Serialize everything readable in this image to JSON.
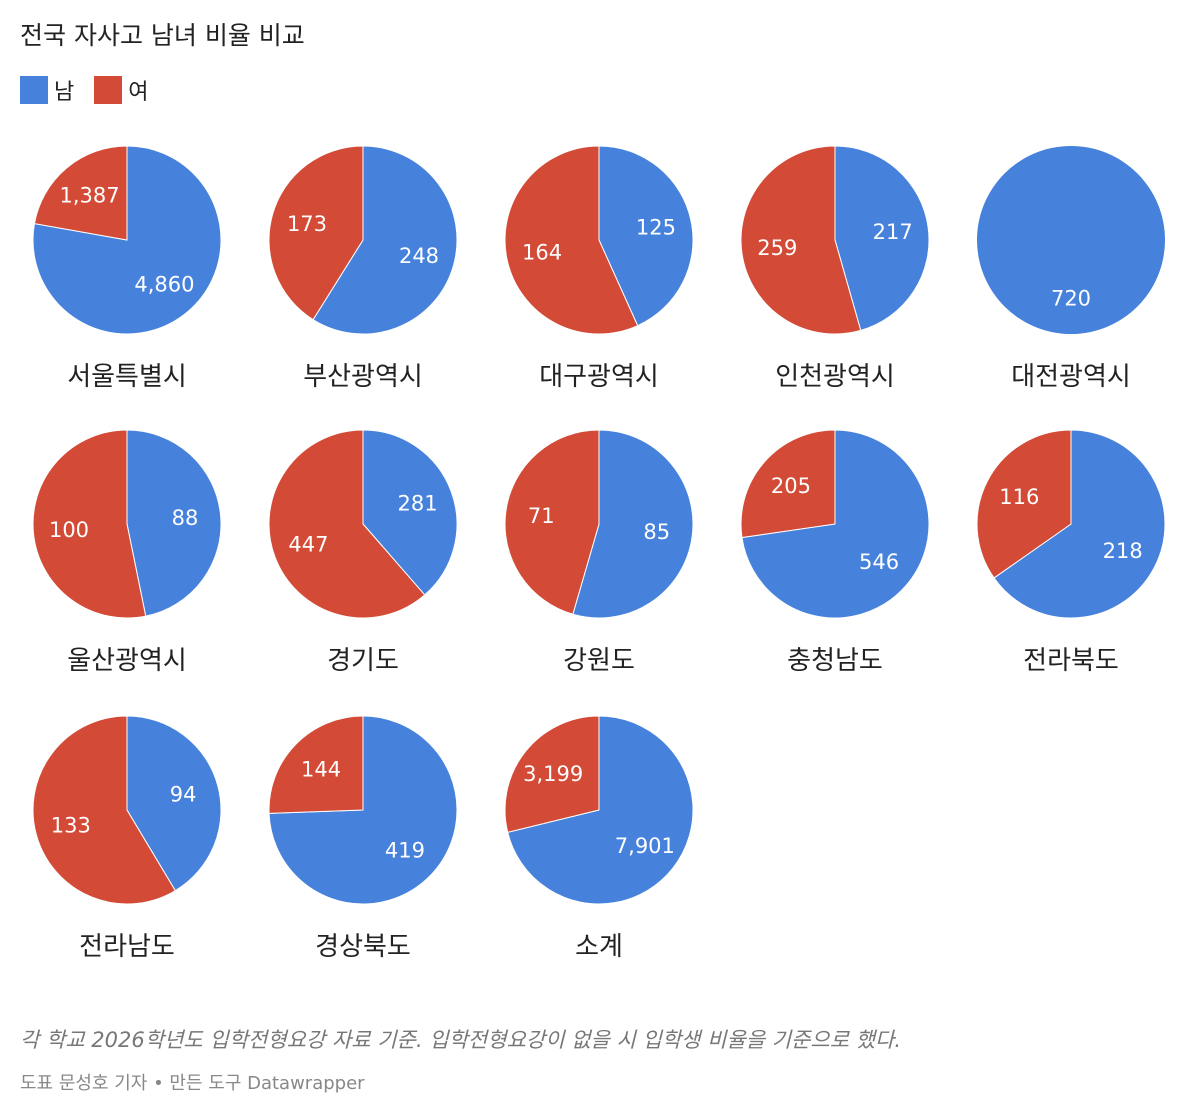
{
  "title": "전국 자사고 남녀 비율 비교",
  "legend": [
    {
      "name": "남",
      "color": "#4682dc"
    },
    {
      "name": "여",
      "color": "#d34a36"
    }
  ],
  "chart_data": {
    "type": "pie",
    "series": [
      "남",
      "여"
    ],
    "colors": {
      "남": "#4682dc",
      "여": "#d34a36"
    },
    "legend_position": "top-left",
    "pies": [
      {
        "label": "서울특별시",
        "남": 4860,
        "여": 1387
      },
      {
        "label": "부산광역시",
        "남": 248,
        "여": 173
      },
      {
        "label": "대구광역시",
        "남": 125,
        "여": 164
      },
      {
        "label": "인천광역시",
        "남": 217,
        "여": 259
      },
      {
        "label": "대전광역시",
        "남": 720,
        "여": 0
      },
      {
        "label": "울산광역시",
        "남": 88,
        "여": 100
      },
      {
        "label": "경기도",
        "남": 281,
        "여": 447
      },
      {
        "label": "강원도",
        "남": 85,
        "여": 71
      },
      {
        "label": "충청남도",
        "남": 546,
        "여": 205
      },
      {
        "label": "전라북도",
        "남": 218,
        "여": 116
      },
      {
        "label": "전라남도",
        "남": 94,
        "여": 133
      },
      {
        "label": "경상북도",
        "남": 419,
        "여": 144
      },
      {
        "label": "소계",
        "남": 7901,
        "여": 3199
      }
    ]
  },
  "footnote": "각 학교 2026학년도 입학전형요강 자료 기준. 입학전형요강이 없을 시 입학생 비율을 기준으로 했다.",
  "credit": "도표 문성호 기자 • 만든 도구 Datawrapper"
}
